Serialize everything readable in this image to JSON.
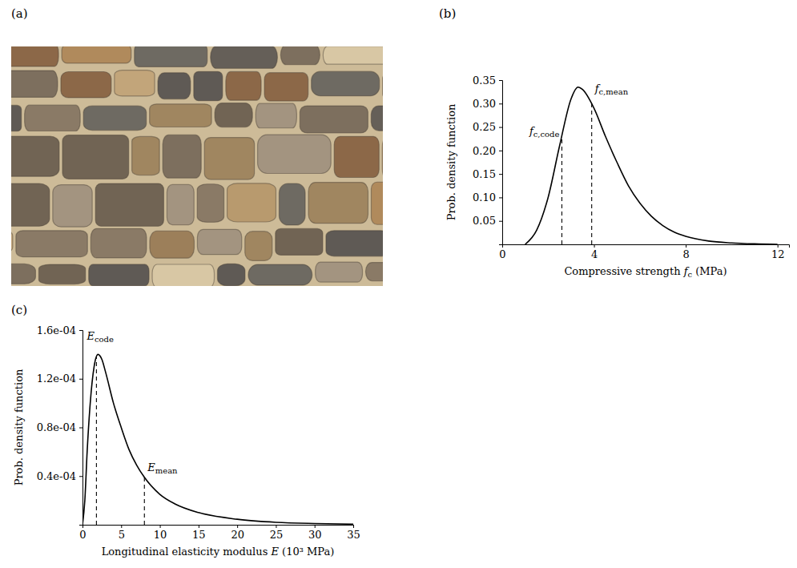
{
  "chart_data": [
    {
      "type": "image",
      "label": "(a)"
    },
    {
      "type": "line",
      "label": "(b)",
      "ylabel": "Prob. density function",
      "xlabel": "Compressive strength",
      "xlabel_symbol": "f",
      "xlabel_symbol_sub": "c",
      "xlabel_unit": "(MPa)",
      "x": [
        1,
        1.5,
        2,
        2.5,
        3,
        3.3,
        3.5,
        4,
        4.5,
        5,
        5.5,
        6,
        6.5,
        7,
        7.5,
        8,
        9,
        10,
        11,
        12
      ],
      "values": [
        0,
        0.03,
        0.1,
        0.21,
        0.31,
        0.335,
        0.33,
        0.29,
        0.23,
        0.175,
        0.125,
        0.088,
        0.06,
        0.04,
        0.026,
        0.017,
        0.007,
        0.003,
        0.001,
        0
      ],
      "color": "#000000",
      "line_style": "solid",
      "xlim": [
        0,
        12.5
      ],
      "xticks": [
        0,
        4,
        8,
        12
      ],
      "ylim": [
        0,
        0.35
      ],
      "yticks": [
        0.05,
        {
          "value": 0.1,
          "label": "0.10"
        },
        0.15,
        {
          "value": 0.2,
          "label": "0.20"
        },
        0.25,
        {
          "value": 0.3,
          "label": "0.30"
        },
        0.35
      ],
      "reference_lines": [
        {
          "symbol": "f",
          "subscript": "c,code",
          "x": 2.6,
          "y": 0.23,
          "line_style": "dashed"
        },
        {
          "symbol": "f",
          "subscript": "c,mean",
          "x": 3.9,
          "y": 0.3,
          "line_style": "dashed"
        }
      ]
    },
    {
      "type": "line",
      "label": "(c)",
      "ylabel": "Prob. density function",
      "xlabel": "Longitudinal elasticity modulus",
      "xlabel_symbol": "E",
      "xlabel_unit": "(10³ MPa)",
      "x": [
        0,
        0.3,
        0.6,
        1,
        1.5,
        2,
        2.5,
        3,
        4,
        5,
        6,
        7,
        8,
        10,
        12,
        15,
        20,
        25,
        30,
        35
      ],
      "values": [
        0,
        2e-05,
        6e-05,
        0.0001,
        0.00013,
        0.00014,
        0.000136,
        0.000125,
        0.0001,
        8e-05,
        6.2e-05,
        4.9e-05,
        3.9e-05,
        2.5e-05,
        1.7e-05,
        1e-05,
        4.5e-06,
        2e-06,
        1e-06,
        5e-07
      ],
      "color": "#000000",
      "line_style": "solid",
      "xlim": [
        0,
        35
      ],
      "xticks": [
        0,
        5,
        10,
        15,
        20,
        25,
        30,
        35
      ],
      "ylim": [
        0,
        0.00016
      ],
      "yticks": [
        {
          "value": 4e-05,
          "label": "0.4e-04"
        },
        {
          "value": 8e-05,
          "label": "0.8e-04"
        },
        {
          "value": 0.00012,
          "label": "1.2e-04"
        },
        {
          "value": 0.00016,
          "label": "1.6e-04"
        }
      ],
      "reference_lines": [
        {
          "symbol": "E",
          "subscript": "code",
          "x": 1.8,
          "y": 0.000138,
          "line_style": "dashed"
        },
        {
          "symbol": "E",
          "subscript": "mean",
          "x": 8,
          "y": 3.9e-05,
          "line_style": "dashed"
        }
      ]
    }
  ]
}
